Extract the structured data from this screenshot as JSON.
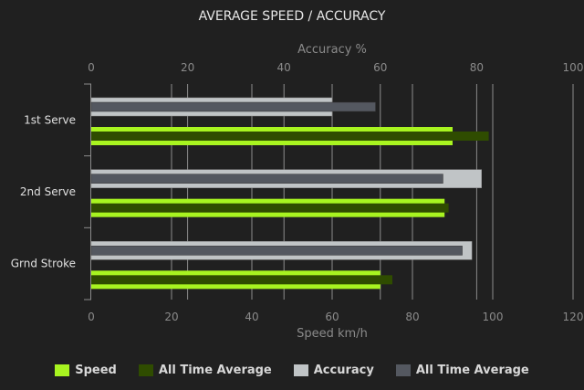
{
  "chart_data": {
    "type": "bar",
    "orientation": "horizontal",
    "title": "AVERAGE SPEED / ACCURACY",
    "categories": [
      "1st Serve",
      "2nd Serve",
      "Grnd Stroke"
    ],
    "axes": {
      "bottom": {
        "label": "Speed km/h",
        "range": [
          0,
          120
        ],
        "ticks": [
          0,
          20,
          40,
          60,
          80,
          100,
          120
        ]
      },
      "top": {
        "label": "Accuracy %",
        "range": [
          0,
          100
        ],
        "ticks": [
          0,
          20,
          40,
          60,
          80,
          100
        ]
      }
    },
    "grid": true,
    "legend_position": "bottom",
    "series": [
      {
        "name": "Speed",
        "axis": "bottom",
        "color": "#a8f420",
        "values": [
          90,
          88,
          72
        ]
      },
      {
        "name": "All Time Average",
        "axis": "bottom",
        "color": "#2f4c00",
        "values": [
          99,
          89,
          75
        ]
      },
      {
        "name": "Accuracy",
        "axis": "top",
        "color": "#c0c4c6",
        "values": [
          50,
          81,
          79
        ]
      },
      {
        "name": "All Time Average",
        "axis": "top",
        "color": "#545860",
        "values": [
          59,
          73,
          77
        ]
      }
    ]
  }
}
